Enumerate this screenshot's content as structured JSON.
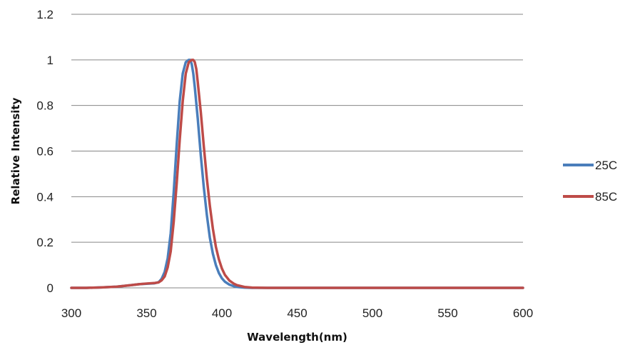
{
  "chart_data": {
    "type": "line",
    "title": "",
    "xlabel": "Wavelength(nm)",
    "ylabel": "Relative Intensity",
    "xlim": [
      300,
      600
    ],
    "ylim": [
      0,
      1.2
    ],
    "x_ticks": [
      300,
      350,
      400,
      450,
      500,
      550,
      600
    ],
    "x_tick_labels": [
      "300",
      "350",
      "400",
      "450",
      "500",
      "550",
      "600"
    ],
    "y_ticks": [
      0,
      0.2,
      0.4,
      0.6,
      0.8,
      1,
      1.2
    ],
    "y_tick_labels": [
      "0",
      "0.2",
      "0.4",
      "0.6",
      "0.8",
      "1",
      "1.2"
    ],
    "grid": "horizontal",
    "legend_position": "right",
    "series": [
      {
        "name": "25C",
        "color": "#4a7ebb",
        "x": [
          300,
          310,
          320,
          330,
          340,
          345,
          350,
          355,
          358,
          360,
          362,
          364,
          366,
          368,
          370,
          372,
          374,
          376,
          378,
          379,
          380,
          381,
          382,
          384,
          386,
          388,
          390,
          392,
          394,
          396,
          398,
          400,
          402,
          405,
          408,
          410,
          415,
          420,
          430,
          450,
          500,
          550,
          600
        ],
        "y": [
          0,
          0,
          0.002,
          0.005,
          0.012,
          0.016,
          0.018,
          0.02,
          0.025,
          0.04,
          0.07,
          0.13,
          0.24,
          0.42,
          0.63,
          0.82,
          0.94,
          0.99,
          1,
          1,
          0.98,
          0.94,
          0.88,
          0.74,
          0.58,
          0.44,
          0.32,
          0.22,
          0.15,
          0.1,
          0.065,
          0.042,
          0.027,
          0.014,
          0.007,
          0.004,
          0.001,
          0,
          0,
          0,
          0,
          0,
          0
        ]
      },
      {
        "name": "85C",
        "color": "#be4b48",
        "x": [
          300,
          310,
          320,
          330,
          340,
          345,
          350,
          355,
          358,
          360,
          362,
          364,
          366,
          368,
          370,
          372,
          374,
          376,
          378,
          380,
          381,
          382,
          383,
          384,
          386,
          388,
          390,
          392,
          394,
          396,
          398,
          400,
          402,
          405,
          408,
          410,
          415,
          420,
          430,
          450,
          500,
          550,
          600
        ],
        "y": [
          0,
          0,
          0.002,
          0.005,
          0.012,
          0.016,
          0.019,
          0.021,
          0.024,
          0.033,
          0.05,
          0.09,
          0.16,
          0.29,
          0.46,
          0.65,
          0.82,
          0.94,
          0.99,
          1,
          1,
          0.99,
          0.96,
          0.9,
          0.77,
          0.62,
          0.48,
          0.36,
          0.26,
          0.18,
          0.125,
          0.085,
          0.057,
          0.032,
          0.018,
          0.012,
          0.004,
          0.001,
          0,
          0,
          0,
          0,
          0
        ]
      }
    ]
  }
}
